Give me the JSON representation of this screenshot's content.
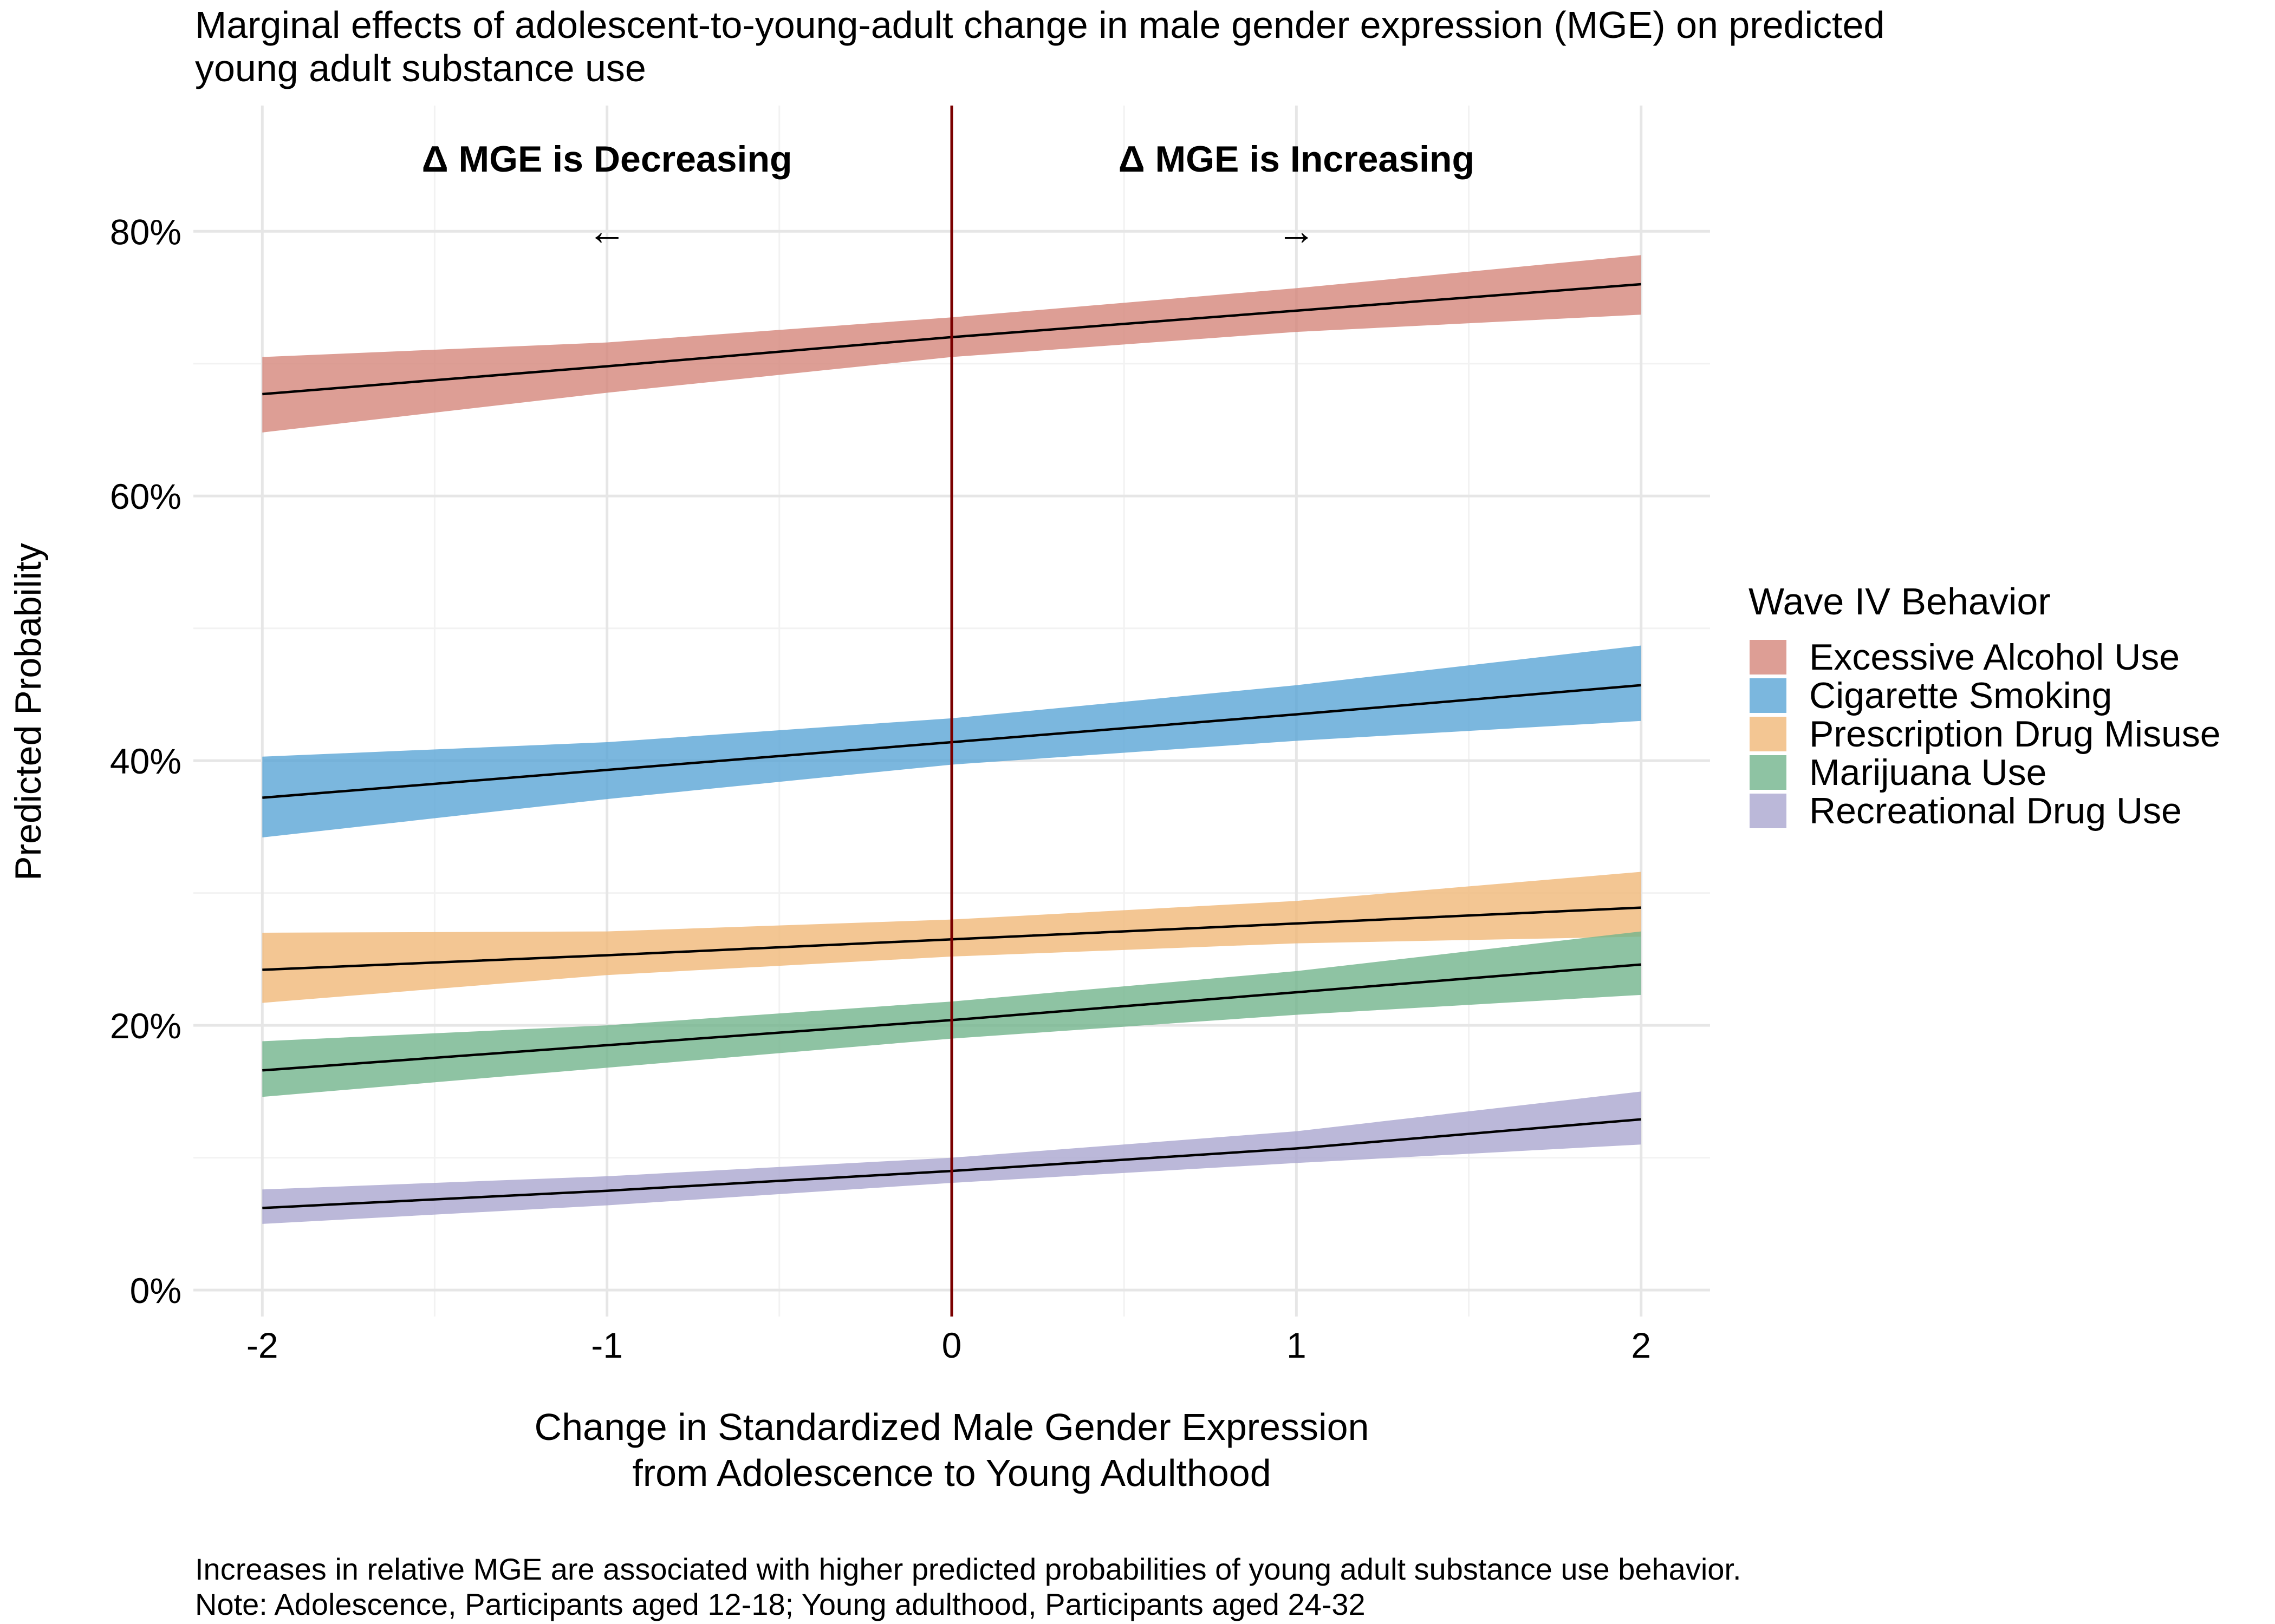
{
  "chart_data": {
    "type": "line",
    "title_lines": [
      "Marginal effects of adolescent-to-young-adult change in male gender expression (MGE) on predicted",
      "young adult substance use"
    ],
    "xlabel_lines": [
      "Change in Standardized Male Gender Expression",
      "from Adolescence to Young Adulthood"
    ],
    "ylabel": "Predicted Probability",
    "caption_lines": [
      "Increases in relative MGE are associated with higher predicted probabilities of young adult substance use behavior.",
      "Note: Adolescence, Participants aged 12-18; Young adulthood, Participants aged 24-32"
    ],
    "xlim": [
      -2.2,
      2.2
    ],
    "ylim": [
      -0.02,
      0.895
    ],
    "x_ticks": [
      {
        "value": -2,
        "label": "-2"
      },
      {
        "value": -1,
        "label": "-1"
      },
      {
        "value": 0,
        "label": "0"
      },
      {
        "value": 1,
        "label": "1"
      },
      {
        "value": 2,
        "label": "2"
      }
    ],
    "y_ticks": [
      {
        "value": 0,
        "label": "0%"
      },
      {
        "value": 0.2,
        "label": "20%"
      },
      {
        "value": 0.4,
        "label": "40%"
      },
      {
        "value": 0.6,
        "label": "60%"
      },
      {
        "value": 0.8,
        "label": "80%"
      }
    ],
    "x_minor": [
      -1.5,
      -0.5,
      0.5,
      1.5
    ],
    "y_minor": [
      0.1,
      0.3,
      0.5,
      0.7
    ],
    "grid": true,
    "vline": {
      "x": 0,
      "color": "#7b0000"
    },
    "annotations": [
      {
        "name": "annotation-decreasing",
        "text": "Δ MGE is Decreasing",
        "x": -1,
        "y": 0.845,
        "bold": true
      },
      {
        "name": "annotation-decreasing-arrow",
        "text": "←",
        "x": -1,
        "y": 0.79,
        "bold": false
      },
      {
        "name": "annotation-increasing",
        "text": "Δ MGE is Increasing",
        "x": 1,
        "y": 0.845,
        "bold": true
      },
      {
        "name": "annotation-increasing-arrow",
        "text": "→",
        "x": 1,
        "y": 0.79,
        "bold": false
      }
    ],
    "x": [
      -2,
      -1,
      0,
      1,
      2
    ],
    "legend": {
      "title": "Wave IV Behavior",
      "position": "right"
    },
    "series": [
      {
        "name": "Excessive Alcohol Use",
        "color": "#d4867a",
        "y": [
          0.677,
          0.698,
          0.72,
          0.74,
          0.76
        ],
        "lower": [
          0.648,
          0.678,
          0.705,
          0.724,
          0.737
        ],
        "upper": [
          0.705,
          0.716,
          0.735,
          0.757,
          0.782
        ]
      },
      {
        "name": "Cigarette Smoking",
        "color": "#5aa5d6",
        "y": [
          0.372,
          0.393,
          0.414,
          0.435,
          0.457
        ],
        "lower": [
          0.342,
          0.371,
          0.397,
          0.415,
          0.43
        ],
        "upper": [
          0.403,
          0.414,
          0.432,
          0.457,
          0.487
        ]
      },
      {
        "name": "Prescription Drug Misuse",
        "color": "#f0b878",
        "y": [
          0.242,
          0.253,
          0.265,
          0.277,
          0.289
        ],
        "lower": [
          0.217,
          0.238,
          0.252,
          0.262,
          0.267
        ],
        "upper": [
          0.27,
          0.271,
          0.28,
          0.294,
          0.316
        ]
      },
      {
        "name": "Marijuana Use",
        "color": "#72b48c",
        "y": [
          0.166,
          0.185,
          0.204,
          0.225,
          0.246
        ],
        "lower": [
          0.146,
          0.168,
          0.19,
          0.208,
          0.223
        ],
        "upper": [
          0.188,
          0.2,
          0.218,
          0.241,
          0.271
        ]
      },
      {
        "name": "Recreational Drug Use",
        "color": "#aaa6d0",
        "y": [
          0.062,
          0.075,
          0.09,
          0.107,
          0.129
        ],
        "lower": [
          0.05,
          0.064,
          0.081,
          0.096,
          0.11
        ],
        "upper": [
          0.076,
          0.086,
          0.1,
          0.12,
          0.15
        ]
      }
    ]
  }
}
